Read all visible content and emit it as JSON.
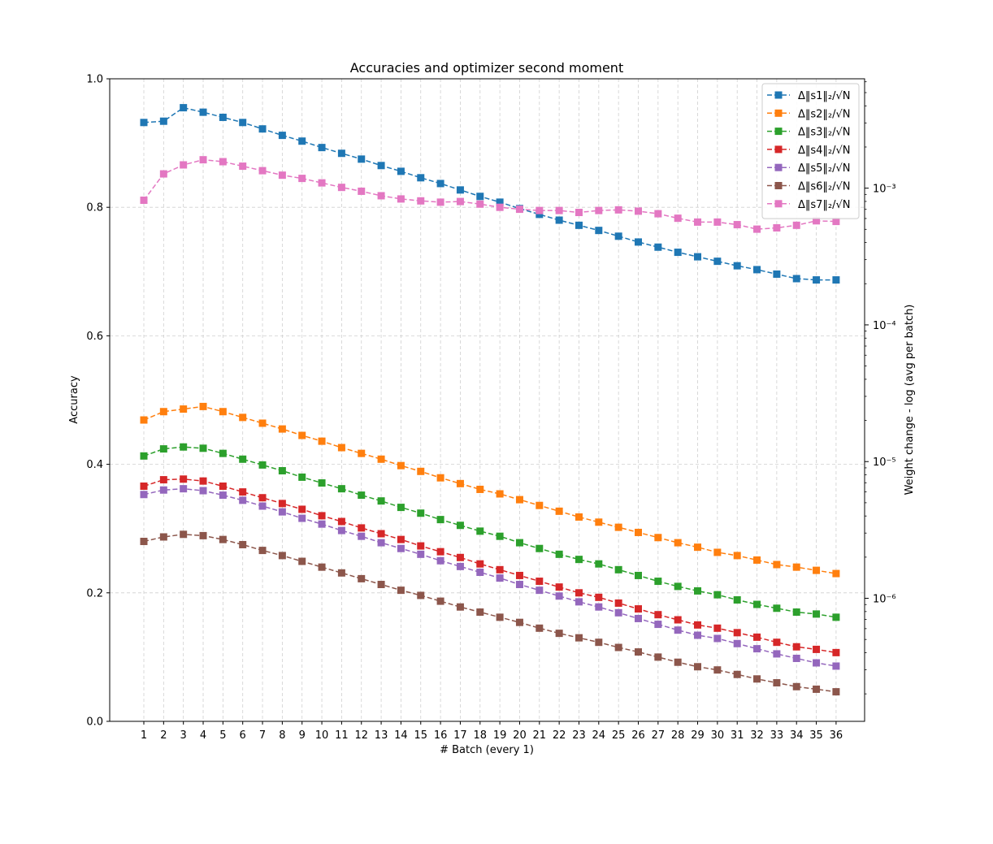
{
  "chart_data": {
    "type": "line",
    "title": "Accuracies and optimizer second moment",
    "xlabel": "# Batch (every 1)",
    "ylabel": "Accuracy",
    "y2label": "Weight change - log (avg per batch)",
    "ylim": [
      0,
      1
    ],
    "yticks": [
      "0.0",
      "0.2",
      "0.4",
      "0.6",
      "0.8",
      "1.0"
    ],
    "y2_scale": "log",
    "y2ticks": [
      "10⁻⁶",
      "10⁻⁵",
      "10⁻⁴",
      "10⁻³"
    ],
    "grid": true,
    "legend_position": "top-right",
    "x": [
      1,
      2,
      3,
      4,
      5,
      6,
      7,
      8,
      9,
      10,
      11,
      12,
      13,
      14,
      15,
      16,
      17,
      18,
      19,
      20,
      21,
      22,
      23,
      24,
      25,
      26,
      27,
      28,
      29,
      30,
      31,
      32,
      33,
      34,
      35,
      36
    ],
    "series": [
      {
        "name": "Δ‖s1‖₂/√N",
        "color": "#1f77b4",
        "values": [
          0.932,
          0.934,
          0.955,
          0.948,
          0.94,
          0.932,
          0.922,
          0.912,
          0.903,
          0.893,
          0.884,
          0.875,
          0.865,
          0.856,
          0.846,
          0.837,
          0.827,
          0.817,
          0.808,
          0.798,
          0.789,
          0.78,
          0.772,
          0.764,
          0.755,
          0.746,
          0.738,
          0.73,
          0.723,
          0.716,
          0.709,
          0.703,
          0.696,
          0.689,
          0.687,
          0.687
        ]
      },
      {
        "name": "Δ‖s2‖₂/√N",
        "color": "#ff7f0e",
        "values": [
          0.469,
          0.482,
          0.486,
          0.49,
          0.482,
          0.473,
          0.464,
          0.455,
          0.445,
          0.436,
          0.426,
          0.417,
          0.408,
          0.398,
          0.389,
          0.379,
          0.37,
          0.361,
          0.354,
          0.345,
          0.336,
          0.327,
          0.318,
          0.31,
          0.302,
          0.294,
          0.286,
          0.278,
          0.271,
          0.263,
          0.258,
          0.251,
          0.244,
          0.24,
          0.235,
          0.23
        ]
      },
      {
        "name": "Δ‖s3‖₂/√N",
        "color": "#2ca02c",
        "values": [
          0.413,
          0.424,
          0.427,
          0.425,
          0.417,
          0.408,
          0.399,
          0.39,
          0.38,
          0.371,
          0.362,
          0.352,
          0.343,
          0.333,
          0.324,
          0.314,
          0.305,
          0.296,
          0.288,
          0.278,
          0.269,
          0.26,
          0.252,
          0.245,
          0.236,
          0.227,
          0.218,
          0.21,
          0.203,
          0.197,
          0.189,
          0.182,
          0.176,
          0.17,
          0.167,
          0.162
        ]
      },
      {
        "name": "Δ‖s4‖₂/√N",
        "color": "#d62728",
        "values": [
          0.366,
          0.376,
          0.377,
          0.374,
          0.366,
          0.357,
          0.348,
          0.339,
          0.33,
          0.32,
          0.311,
          0.301,
          0.292,
          0.283,
          0.273,
          0.264,
          0.255,
          0.245,
          0.236,
          0.227,
          0.218,
          0.209,
          0.2,
          0.193,
          0.184,
          0.175,
          0.166,
          0.158,
          0.15,
          0.145,
          0.138,
          0.131,
          0.123,
          0.116,
          0.112,
          0.107
        ]
      },
      {
        "name": "Δ‖s5‖₂/√N",
        "color": "#9467bd",
        "values": [
          0.353,
          0.36,
          0.362,
          0.359,
          0.352,
          0.344,
          0.335,
          0.326,
          0.316,
          0.307,
          0.297,
          0.288,
          0.278,
          0.269,
          0.26,
          0.25,
          0.241,
          0.232,
          0.223,
          0.213,
          0.204,
          0.195,
          0.186,
          0.178,
          0.169,
          0.16,
          0.151,
          0.142,
          0.134,
          0.129,
          0.121,
          0.113,
          0.105,
          0.098,
          0.091,
          0.086
        ]
      },
      {
        "name": "Δ‖s6‖₂/√N",
        "color": "#8c564b",
        "values": [
          0.28,
          0.287,
          0.291,
          0.289,
          0.283,
          0.275,
          0.266,
          0.258,
          0.249,
          0.24,
          0.231,
          0.222,
          0.213,
          0.204,
          0.196,
          0.187,
          0.178,
          0.17,
          0.162,
          0.154,
          0.145,
          0.137,
          0.13,
          0.123,
          0.115,
          0.108,
          0.1,
          0.092,
          0.085,
          0.08,
          0.073,
          0.066,
          0.06,
          0.054,
          0.05,
          0.046
        ]
      },
      {
        "name": "Δ‖s7‖₂/√N",
        "color": "#e377c2",
        "values": [
          0.811,
          0.852,
          0.866,
          0.874,
          0.871,
          0.864,
          0.857,
          0.85,
          0.845,
          0.838,
          0.831,
          0.825,
          0.818,
          0.813,
          0.81,
          0.808,
          0.809,
          0.805,
          0.8,
          0.797,
          0.795,
          0.795,
          0.792,
          0.795,
          0.796,
          0.794,
          0.79,
          0.783,
          0.777,
          0.777,
          0.773,
          0.766,
          0.768,
          0.772,
          0.779,
          0.778
        ]
      }
    ]
  }
}
